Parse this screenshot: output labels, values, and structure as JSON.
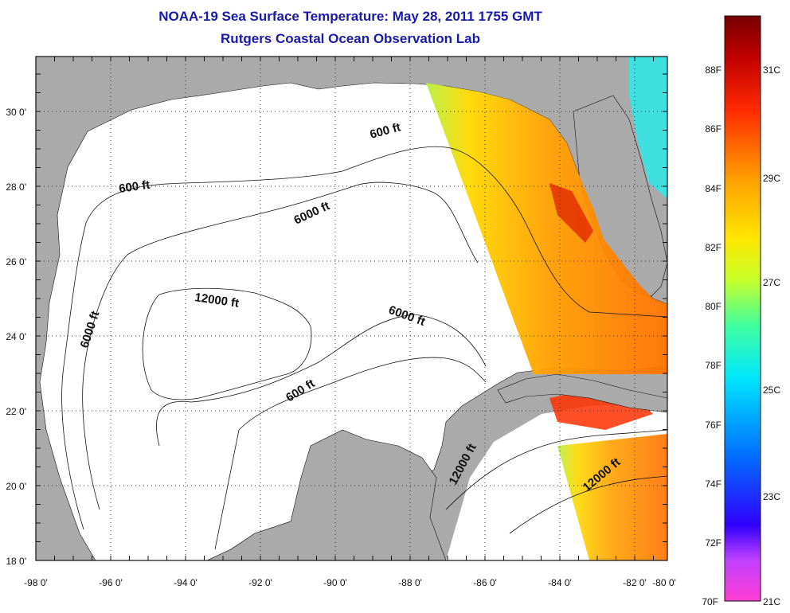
{
  "title": "NOAA-19 Sea Surface Temperature:  May 28, 2011 1755 GMT",
  "subtitle": "Rutgers Coastal Ocean Observation Lab",
  "map": {
    "lon_ticks": [
      "-98 0'",
      "-96 0'",
      "-94 0'",
      "-92 0'",
      "-90 0'",
      "-88 0'",
      "-86 0'",
      "-84 0'",
      "-82 0'",
      "-80 0'"
    ],
    "lat_ticks": [
      "18 0'",
      "20 0'",
      "22 0'",
      "24 0'",
      "26 0'",
      "28 0'",
      "30 0'"
    ],
    "lon_range": [
      -98,
      -80
    ],
    "lat_range": [
      18,
      31
    ],
    "grid": "dotted",
    "land_color": "#aaaaaa",
    "contour_labels": [
      "600 ft",
      "600 ft",
      "6000 ft",
      "6000 ft",
      "6000 ft",
      "12000 ft",
      "600 ft",
      "12000 ft",
      "12000 ft"
    ]
  },
  "colorbar": {
    "fahrenheit_labels": [
      "88F",
      "86F",
      "84F",
      "82F",
      "80F",
      "78F",
      "76F",
      "74F",
      "72F",
      "70F"
    ],
    "celsius_labels": [
      "31C",
      "29C",
      "27C",
      "25C",
      "23C",
      "21C"
    ],
    "colors": [
      "#ff3cd2",
      "#9b30ff",
      "#1e00ff",
      "#0078ff",
      "#00e6ff",
      "#3cffa0",
      "#c8ff28",
      "#ffe100",
      "#ff9600",
      "#ff2800",
      "#b40000",
      "#780000"
    ]
  }
}
